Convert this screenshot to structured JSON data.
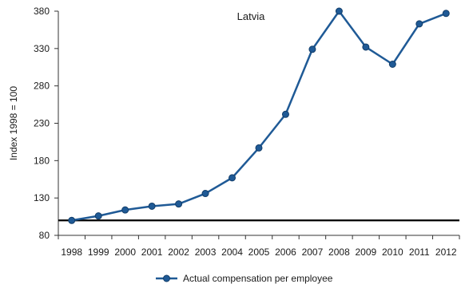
{
  "chart_data": {
    "type": "line",
    "title": "Latvia",
    "xlabel": "",
    "ylabel": "Index 1998 = 100",
    "categories": [
      "1998",
      "1999",
      "2000",
      "2001",
      "2002",
      "2003",
      "2004",
      "2005",
      "2006",
      "2007",
      "2008",
      "2009",
      "2010",
      "2011",
      "2012"
    ],
    "series": [
      {
        "name": "Actual compensation per employee",
        "values": [
          100,
          106,
          114,
          119,
          122,
          136,
          157,
          197,
          242,
          329,
          380,
          332,
          309,
          363,
          377
        ],
        "color": "#1f5a96"
      }
    ],
    "ylim": [
      80,
      380
    ],
    "yticks": [
      80,
      130,
      180,
      230,
      280,
      330,
      380
    ],
    "reference_line": {
      "value": 100,
      "color": "#000000"
    },
    "grid": false,
    "legend_position": "bottom"
  }
}
